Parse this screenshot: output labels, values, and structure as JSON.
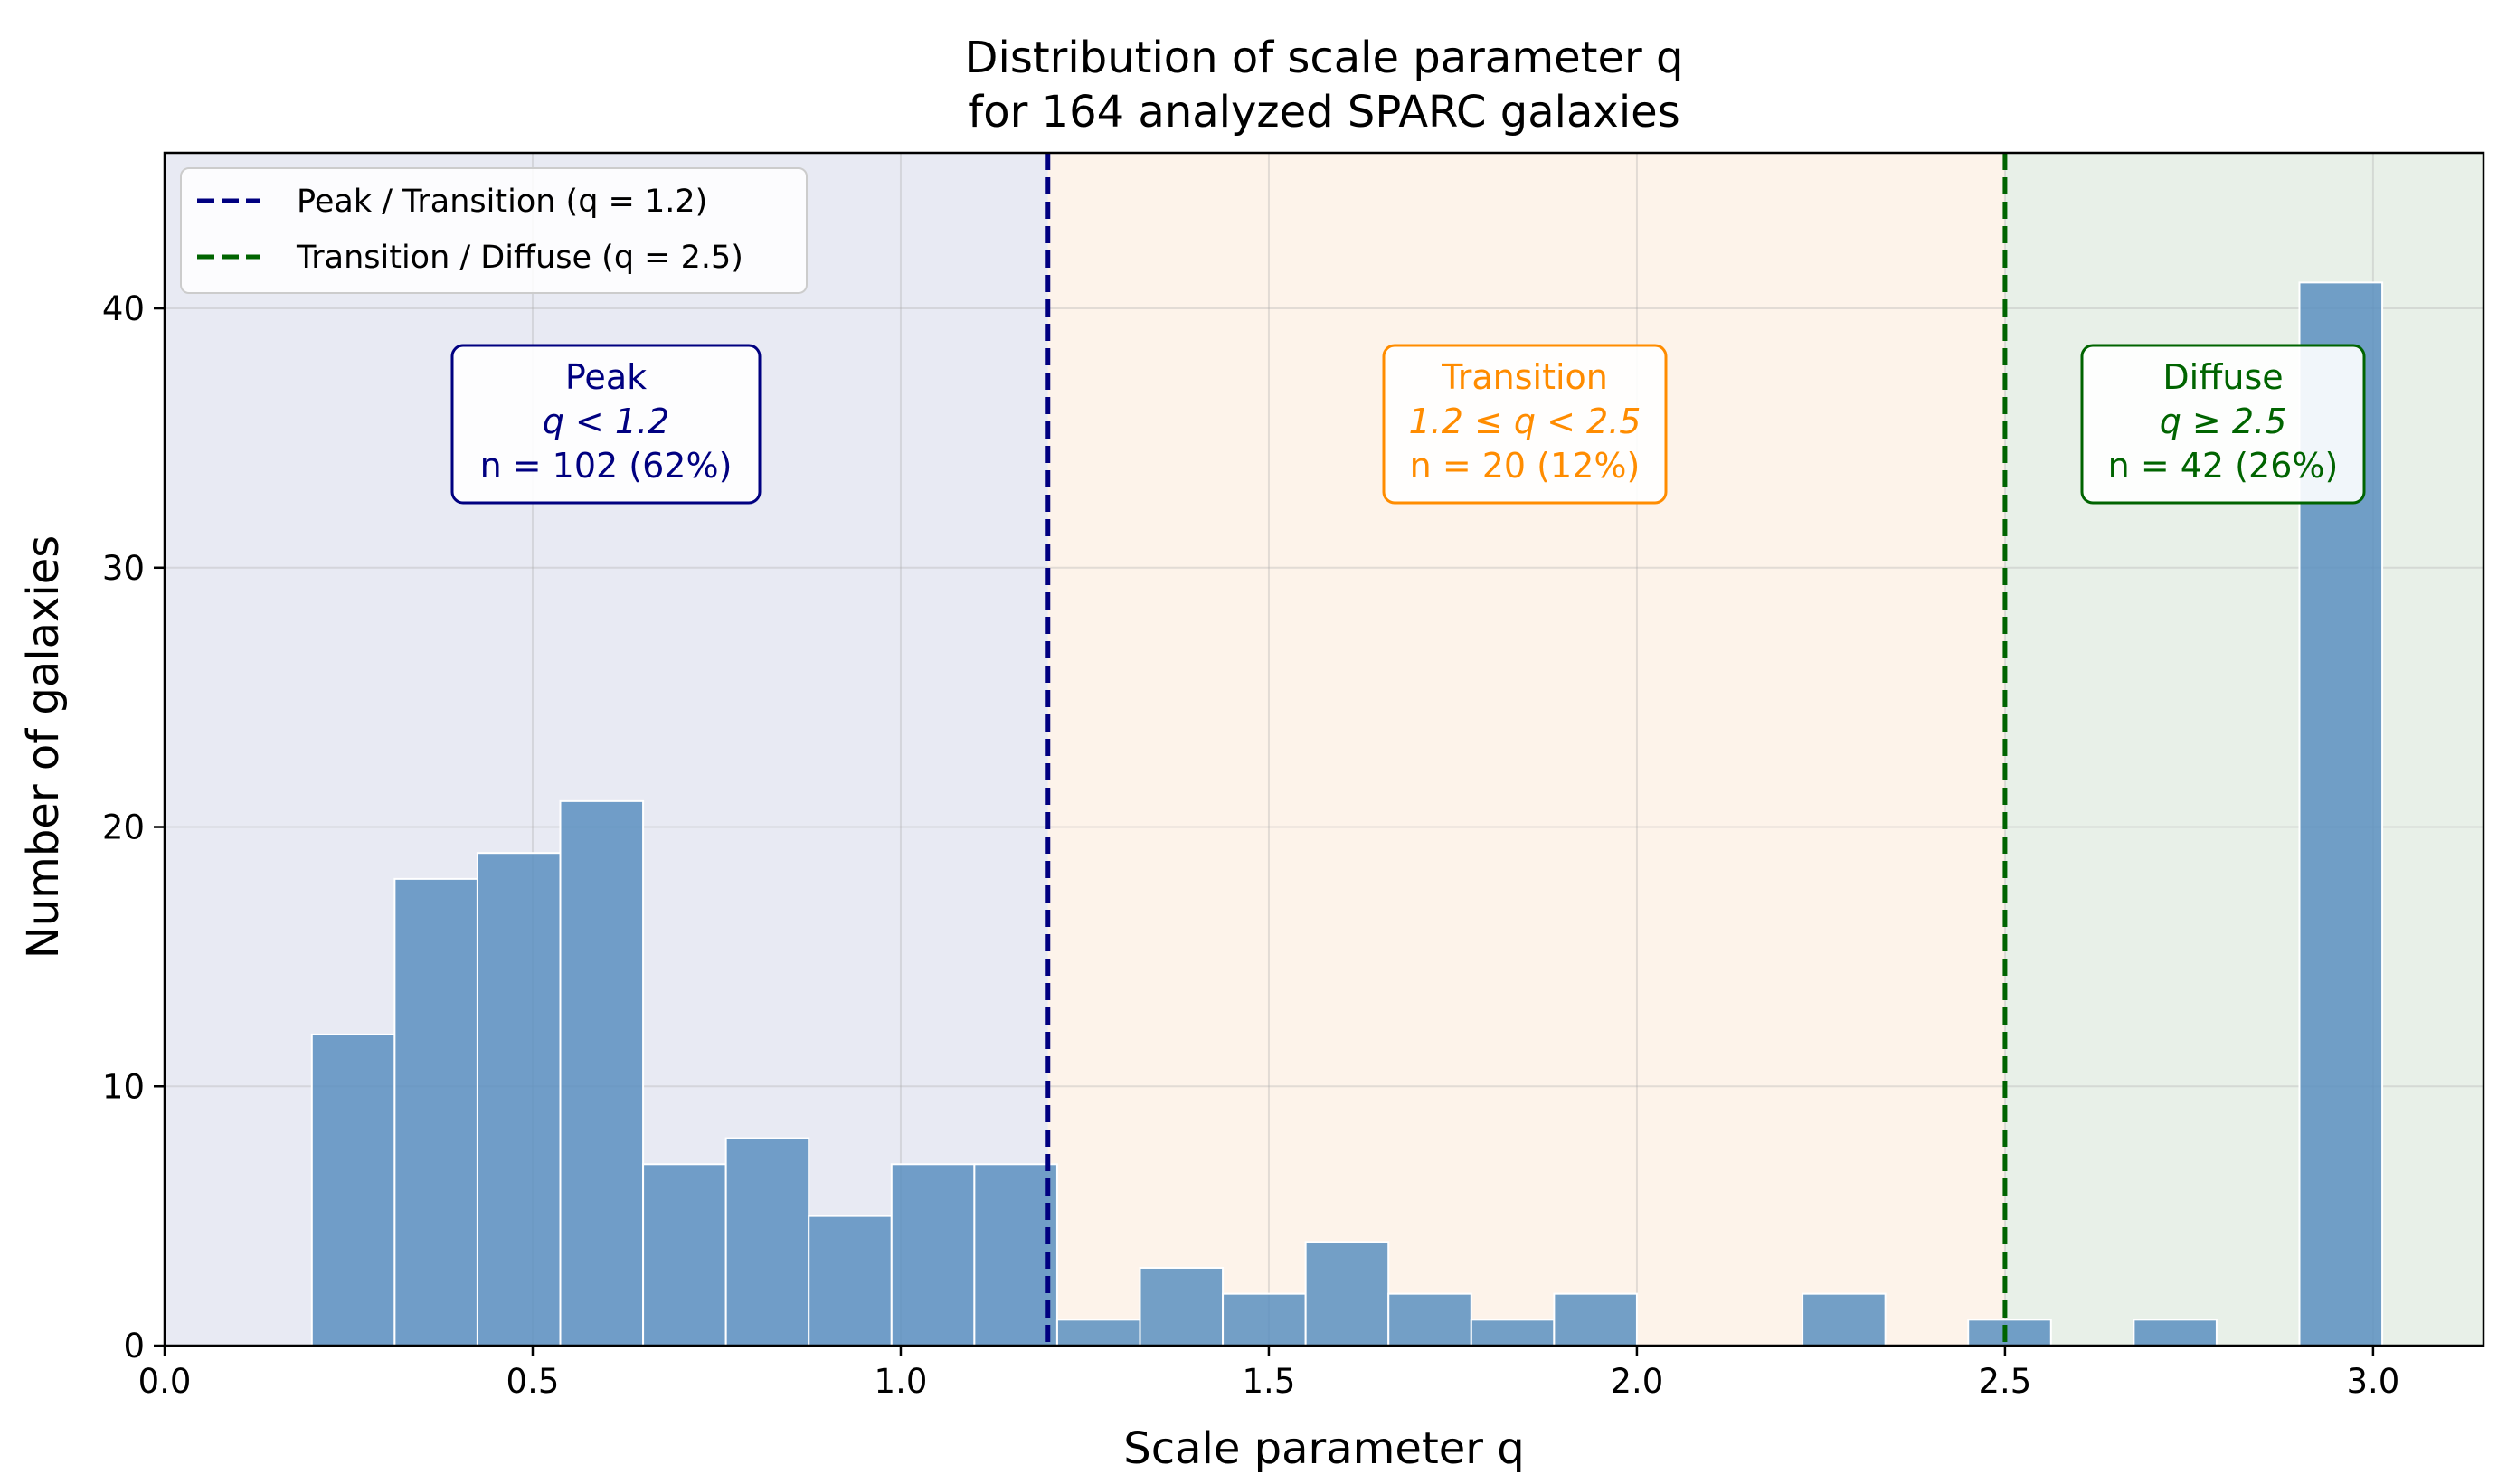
{
  "chart_data": {
    "type": "bar",
    "title_lines": [
      "Distribution of scale parameter q",
      "for 164 analyzed SPARC galaxies"
    ],
    "xlabel": "Scale parameter q",
    "ylabel": "Number of galaxies",
    "xlim": [
      0.0,
      3.15
    ],
    "ylim": [
      0,
      46
    ],
    "xticks": [
      0.0,
      0.5,
      1.0,
      1.5,
      2.0,
      2.5,
      3.0
    ],
    "xtick_labels": [
      "0.0",
      "0.5",
      "1.0",
      "1.5",
      "2.0",
      "2.5",
      "3.0"
    ],
    "yticks": [
      0,
      10,
      20,
      30,
      40
    ],
    "ytick_labels": [
      "0",
      "10",
      "20",
      "30",
      "40"
    ],
    "grid": true,
    "bin_width": 0.1125,
    "bins": [
      {
        "x0": 0.2,
        "count": 12
      },
      {
        "x0": 0.3125,
        "count": 18
      },
      {
        "x0": 0.425,
        "count": 19
      },
      {
        "x0": 0.5375,
        "count": 21
      },
      {
        "x0": 0.65,
        "count": 7
      },
      {
        "x0": 0.7625,
        "count": 8
      },
      {
        "x0": 0.875,
        "count": 5
      },
      {
        "x0": 0.9875,
        "count": 7
      },
      {
        "x0": 1.1,
        "count": 7
      },
      {
        "x0": 1.2125,
        "count": 1
      },
      {
        "x0": 1.325,
        "count": 3
      },
      {
        "x0": 1.4375,
        "count": 2
      },
      {
        "x0": 1.55,
        "count": 4
      },
      {
        "x0": 1.6625,
        "count": 2
      },
      {
        "x0": 1.775,
        "count": 1
      },
      {
        "x0": 1.8875,
        "count": 2
      },
      {
        "x0": 2.225,
        "count": 2
      },
      {
        "x0": 2.45,
        "count": 1
      },
      {
        "x0": 2.675,
        "count": 1
      },
      {
        "x0": 2.9,
        "count": 41
      }
    ],
    "thresholds": [
      {
        "x": 1.2,
        "label": "Peak / Transition (q = 1.2)",
        "color": "#000080"
      },
      {
        "x": 2.5,
        "label": "Transition / Diffuse (q = 2.5)",
        "color": "#006400"
      }
    ],
    "regions": [
      {
        "x0": 0.0,
        "x1": 1.2,
        "fill": "#e8eaf3",
        "color": "#000080",
        "lines": [
          "Peak",
          "q < 1.2",
          "n = 102 (62%)"
        ]
      },
      {
        "x0": 1.2,
        "x1": 2.5,
        "fill": "#fdf3ea",
        "color": "#ff8c00",
        "lines": [
          "Transition",
          "1.2 ≤ q < 2.5",
          "n = 20 (12%)"
        ]
      },
      {
        "x0": 2.5,
        "x1": 3.15,
        "fill": "#e8f0e8",
        "color": "#006400",
        "lines": [
          "Diffuse",
          "q ≥ 2.5",
          "n = 42 (26%)"
        ]
      }
    ],
    "bar_color": "#5b8fbf",
    "legend_position": "top-left"
  }
}
